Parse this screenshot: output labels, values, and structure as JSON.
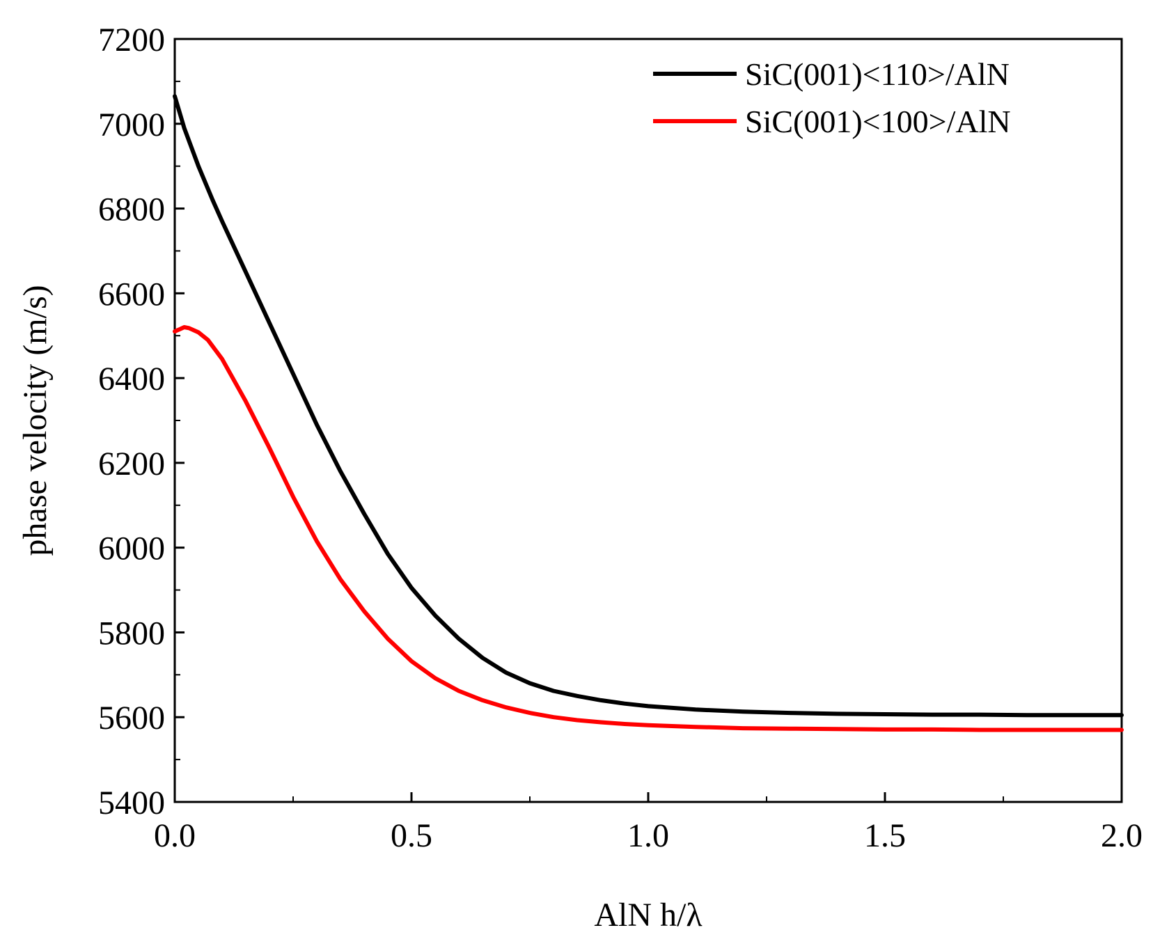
{
  "chart_data": {
    "type": "line",
    "title": "",
    "xlabel": "AlN h/λ",
    "ylabel": "phase velocity (m/s)",
    "xlim": [
      0.0,
      2.0
    ],
    "ylim": [
      5400,
      7200
    ],
    "xticks": [
      0.0,
      0.5,
      1.0,
      1.5,
      2.0
    ],
    "xtick_labels": [
      "0.0",
      "0.5",
      "1.0",
      "1.5",
      "2.0"
    ],
    "xminor_step": 0.25,
    "yticks": [
      5400,
      5600,
      5800,
      6000,
      6200,
      6400,
      6600,
      6800,
      7000,
      7200
    ],
    "ytick_labels": [
      "5400",
      "5600",
      "5800",
      "6000",
      "6200",
      "6400",
      "6600",
      "6800",
      "7000",
      "7200"
    ],
    "yminor_step": 100,
    "grid": false,
    "legend_position": "top-right",
    "series": [
      {
        "name": "SiC(001)<110>/AlN",
        "color": "#000000",
        "x": [
          0.0,
          0.02,
          0.05,
          0.08,
          0.1,
          0.15,
          0.2,
          0.25,
          0.3,
          0.35,
          0.4,
          0.45,
          0.5,
          0.55,
          0.6,
          0.65,
          0.7,
          0.75,
          0.8,
          0.85,
          0.9,
          0.95,
          1.0,
          1.1,
          1.2,
          1.3,
          1.4,
          1.5,
          1.6,
          1.7,
          1.8,
          1.9,
          2.0
        ],
        "y": [
          7065,
          6990,
          6900,
          6820,
          6770,
          6650,
          6530,
          6410,
          6290,
          6180,
          6080,
          5985,
          5905,
          5840,
          5785,
          5740,
          5705,
          5680,
          5662,
          5650,
          5640,
          5632,
          5626,
          5618,
          5613,
          5610,
          5608,
          5607,
          5606,
          5606,
          5605,
          5605,
          5605
        ]
      },
      {
        "name": "SiC(001)<100>/AlN",
        "color": "#ff0000",
        "x": [
          0.0,
          0.01,
          0.02,
          0.03,
          0.05,
          0.07,
          0.1,
          0.15,
          0.2,
          0.25,
          0.3,
          0.35,
          0.4,
          0.45,
          0.5,
          0.55,
          0.6,
          0.65,
          0.7,
          0.75,
          0.8,
          0.85,
          0.9,
          0.95,
          1.0,
          1.1,
          1.2,
          1.3,
          1.4,
          1.5,
          1.6,
          1.7,
          1.8,
          1.9,
          2.0
        ],
        "y": [
          6510,
          6515,
          6520,
          6518,
          6508,
          6490,
          6445,
          6345,
          6235,
          6120,
          6015,
          5925,
          5850,
          5785,
          5732,
          5692,
          5662,
          5640,
          5623,
          5610,
          5600,
          5593,
          5588,
          5584,
          5581,
          5577,
          5574,
          5573,
          5572,
          5571,
          5571,
          5570,
          5570,
          5570,
          5570
        ]
      }
    ]
  }
}
